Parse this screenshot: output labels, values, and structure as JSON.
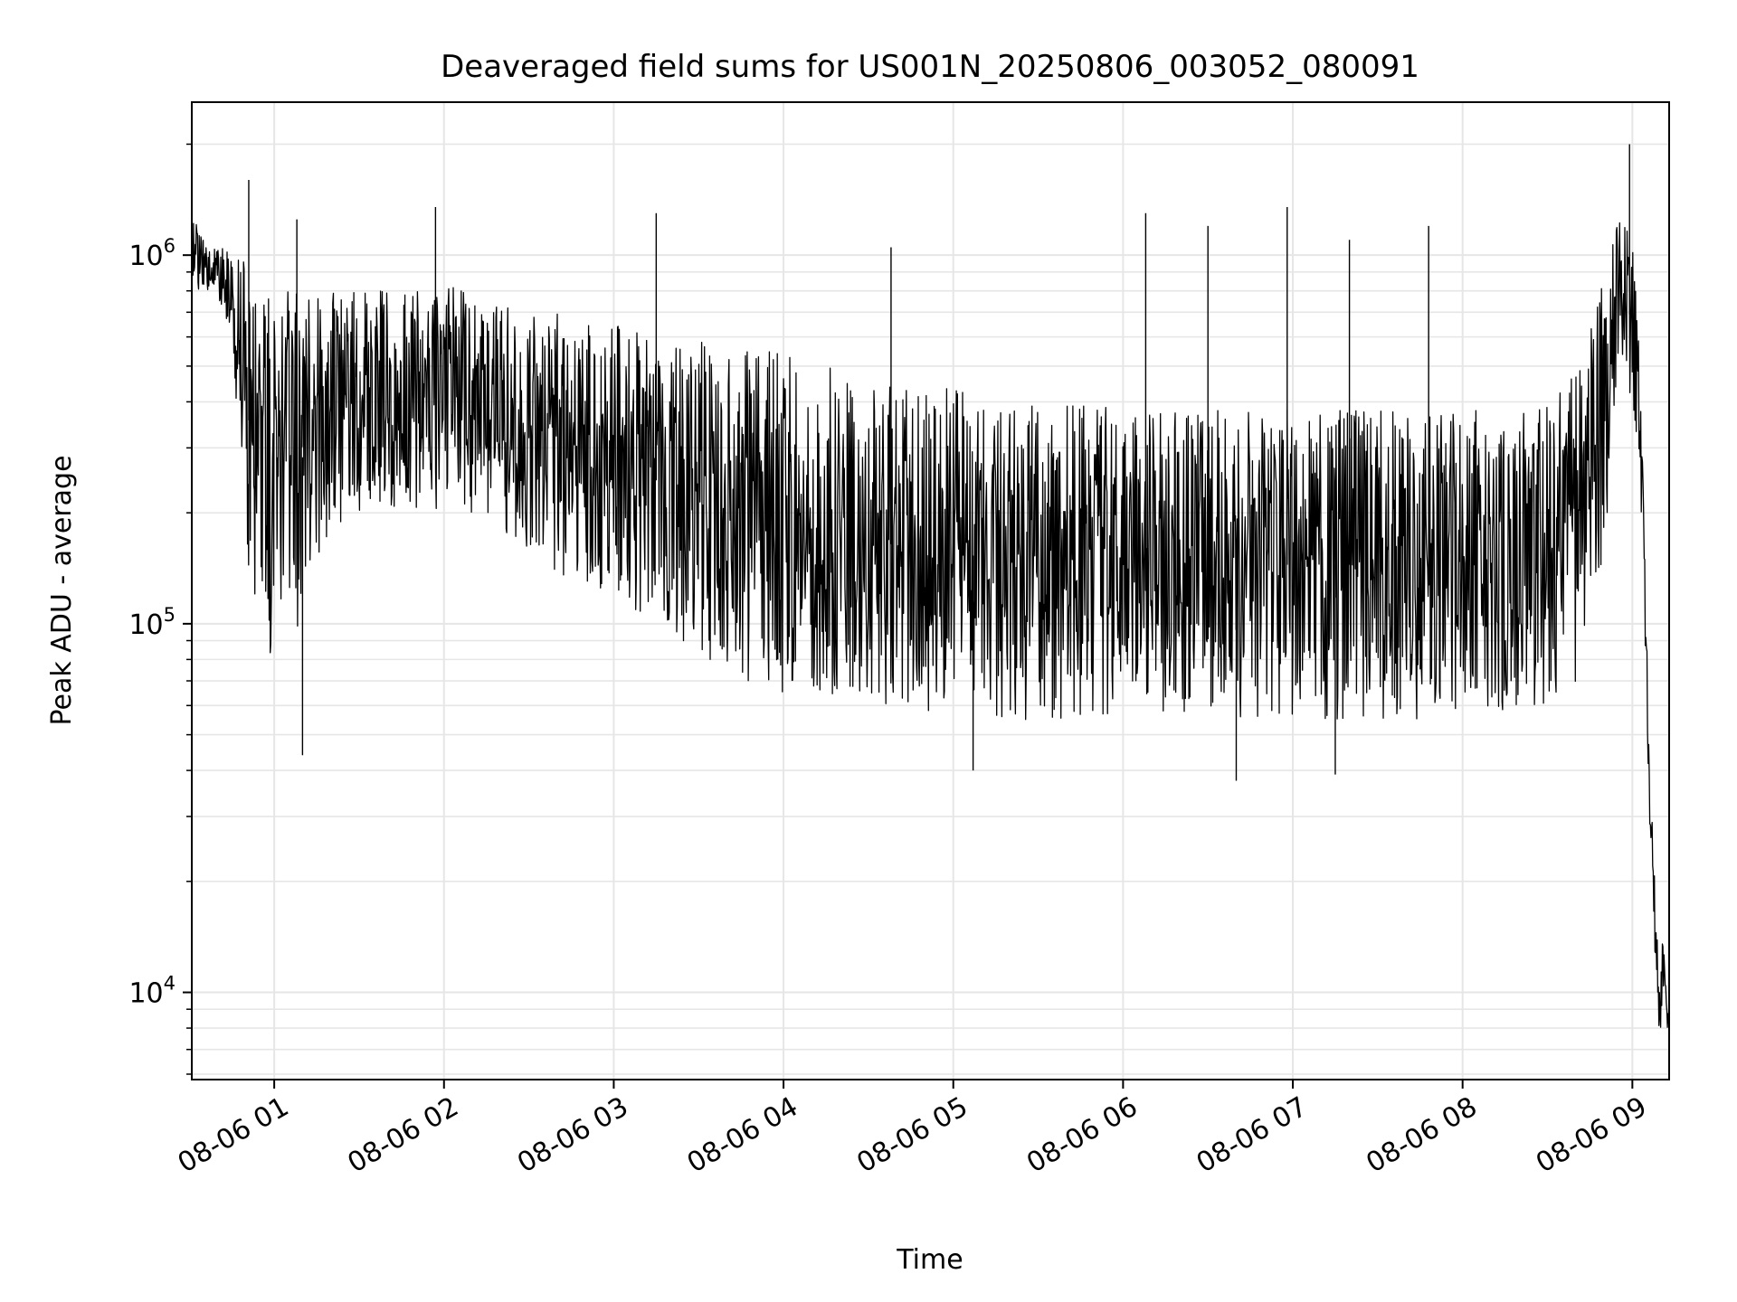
{
  "chart_data": {
    "type": "line",
    "title": "Deaveraged field sums for US001N_20250806_003052_080091",
    "xlabel": "Time",
    "ylabel": "Peak ADU - average",
    "yscale": "log",
    "ylim": [
      5800,
      2600000
    ],
    "xlim": [
      "2025-08-06 00:30:52",
      "2025-08-06 09:13:00"
    ],
    "grid": true,
    "legend": "none",
    "line_color": "#000000",
    "x_tick_labels": [
      "08-06 01",
      "08-06 02",
      "08-06 03",
      "08-06 04",
      "08-06 05",
      "08-06 06",
      "08-06 07",
      "08-06 08",
      "08-06 09"
    ],
    "x_tick_values": [
      "2025-08-06 01:00",
      "2025-08-06 02:00",
      "2025-08-06 03:00",
      "2025-08-06 04:00",
      "2025-08-06 05:00",
      "2025-08-06 06:00",
      "2025-08-06 07:00",
      "2025-08-06 08:00",
      "2025-08-06 09:00"
    ],
    "y_tick_labels": [
      {
        "base": "10",
        "exp": "4",
        "value": 10000
      },
      {
        "base": "10",
        "exp": "5",
        "value": 100000
      },
      {
        "base": "10",
        "exp": "6",
        "value": 1000000
      }
    ],
    "series": [
      {
        "x": [
          "2025-08-06 00:30:52",
          "2025-08-06 00:35",
          "2025-08-06 00:40",
          "2025-08-06 00:45",
          "2025-08-06 00:50",
          "2025-08-06 00:55",
          "2025-08-06 01:00",
          "2025-08-06 01:05",
          "2025-08-06 01:10",
          "2025-08-06 01:15",
          "2025-08-06 01:20",
          "2025-08-06 01:30",
          "2025-08-06 01:40",
          "2025-08-06 01:50",
          "2025-08-06 02:00",
          "2025-08-06 02:15",
          "2025-08-06 02:30",
          "2025-08-06 02:45",
          "2025-08-06 03:00",
          "2025-08-06 03:15",
          "2025-08-06 03:30",
          "2025-08-06 03:45",
          "2025-08-06 04:00",
          "2025-08-06 04:15",
          "2025-08-06 04:30",
          "2025-08-06 04:45",
          "2025-08-06 05:00",
          "2025-08-06 05:15",
          "2025-08-06 05:30",
          "2025-08-06 05:45",
          "2025-08-06 06:00",
          "2025-08-06 06:15",
          "2025-08-06 06:30",
          "2025-08-06 06:45",
          "2025-08-06 07:00",
          "2025-08-06 07:15",
          "2025-08-06 07:30",
          "2025-08-06 07:45",
          "2025-08-06 08:00",
          "2025-08-06 08:15",
          "2025-08-06 08:30",
          "2025-08-06 08:40",
          "2025-08-06 08:50",
          "2025-08-06 08:55",
          "2025-08-06 09:00",
          "2025-08-06 09:03",
          "2025-08-06 09:06",
          "2025-08-06 09:09",
          "2025-08-06 09:13"
        ],
        "low": [
          800000,
          800000,
          750000,
          600000,
          150000,
          100000,
          70000,
          90000,
          100000,
          150000,
          180000,
          200000,
          200000,
          200000,
          200000,
          200000,
          150000,
          130000,
          120000,
          100000,
          80000,
          70000,
          65000,
          65000,
          60000,
          60000,
          55000,
          55000,
          55000,
          55000,
          55000,
          55000,
          55000,
          55000,
          55000,
          55000,
          55000,
          55000,
          55000,
          55000,
          55000,
          70000,
          150000,
          500000,
          400000,
          200000,
          30000,
          8000,
          8000
        ],
        "high": [
          1300000,
          1100000,
          1050000,
          1050000,
          950000,
          800000,
          750000,
          800000,
          800000,
          800000,
          800000,
          800000,
          800000,
          800000,
          850000,
          750000,
          700000,
          700000,
          650000,
          600000,
          600000,
          550000,
          550000,
          500000,
          450000,
          450000,
          450000,
          400000,
          400000,
          400000,
          380000,
          380000,
          380000,
          380000,
          380000,
          380000,
          380000,
          380000,
          380000,
          380000,
          400000,
          500000,
          900000,
          1300000,
          1100000,
          600000,
          40000,
          15000,
          12000
        ],
        "spikes": [
          {
            "x": "2025-08-06 00:51",
            "y": 1600000
          },
          {
            "x": "2025-08-06 01:08",
            "y": 1250000
          },
          {
            "x": "2025-08-06 01:57",
            "y": 1350000
          },
          {
            "x": "2025-08-06 03:15",
            "y": 1300000
          },
          {
            "x": "2025-08-06 04:38",
            "y": 1050000
          },
          {
            "x": "2025-08-06 06:08",
            "y": 1300000
          },
          {
            "x": "2025-08-06 06:30",
            "y": 1200000
          },
          {
            "x": "2025-08-06 06:58",
            "y": 1350000
          },
          {
            "x": "2025-08-06 07:20",
            "y": 1100000
          },
          {
            "x": "2025-08-06 07:48",
            "y": 1200000
          },
          {
            "x": "2025-08-06 08:59",
            "y": 2000000
          },
          {
            "x": "2025-08-06 01:10",
            "y": 44000
          },
          {
            "x": "2025-08-06 05:07",
            "y": 40000
          },
          {
            "x": "2025-08-06 06:40",
            "y": 37500
          },
          {
            "x": "2025-08-06 07:15",
            "y": 39000
          }
        ]
      }
    ]
  }
}
